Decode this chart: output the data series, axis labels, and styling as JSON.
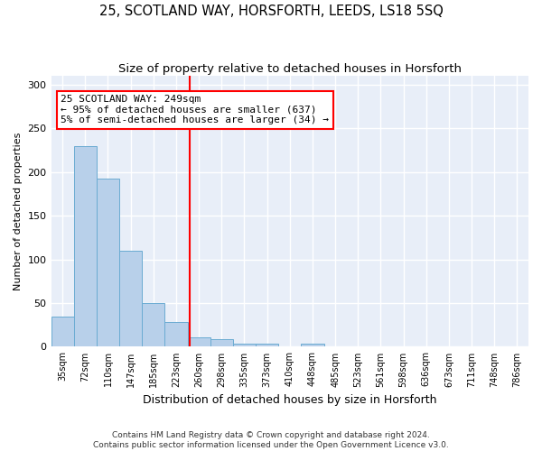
{
  "title": "25, SCOTLAND WAY, HORSFORTH, LEEDS, LS18 5SQ",
  "subtitle": "Size of property relative to detached houses in Horsforth",
  "xlabel": "Distribution of detached houses by size in Horsforth",
  "ylabel": "Number of detached properties",
  "footer1": "Contains HM Land Registry data © Crown copyright and database right 2024.",
  "footer2": "Contains public sector information licensed under the Open Government Licence v3.0.",
  "bin_labels": [
    "35sqm",
    "72sqm",
    "110sqm",
    "147sqm",
    "185sqm",
    "223sqm",
    "260sqm",
    "298sqm",
    "335sqm",
    "373sqm",
    "410sqm",
    "448sqm",
    "485sqm",
    "523sqm",
    "561sqm",
    "598sqm",
    "636sqm",
    "673sqm",
    "711sqm",
    "748sqm",
    "786sqm"
  ],
  "bar_values": [
    35,
    230,
    192,
    110,
    50,
    28,
    11,
    9,
    4,
    4,
    0,
    4,
    0,
    0,
    0,
    0,
    0,
    0,
    0,
    0,
    0
  ],
  "bar_color": "#b8d0ea",
  "bar_edge_color": "#6aabd2",
  "vline_x": 5.58,
  "vline_color": "red",
  "annotation_text": "25 SCOTLAND WAY: 249sqm\n← 95% of detached houses are smaller (637)\n5% of semi-detached houses are larger (34) →",
  "annotation_box_color": "white",
  "annotation_box_edge": "red",
  "ylim": [
    0,
    310
  ],
  "background_color": "#e8eef8",
  "grid_color": "white",
  "title_fontsize": 10.5,
  "subtitle_fontsize": 9.5,
  "annot_fontsize": 8.0,
  "ylabel_fontsize": 8,
  "xlabel_fontsize": 9,
  "tick_fontsize": 7
}
